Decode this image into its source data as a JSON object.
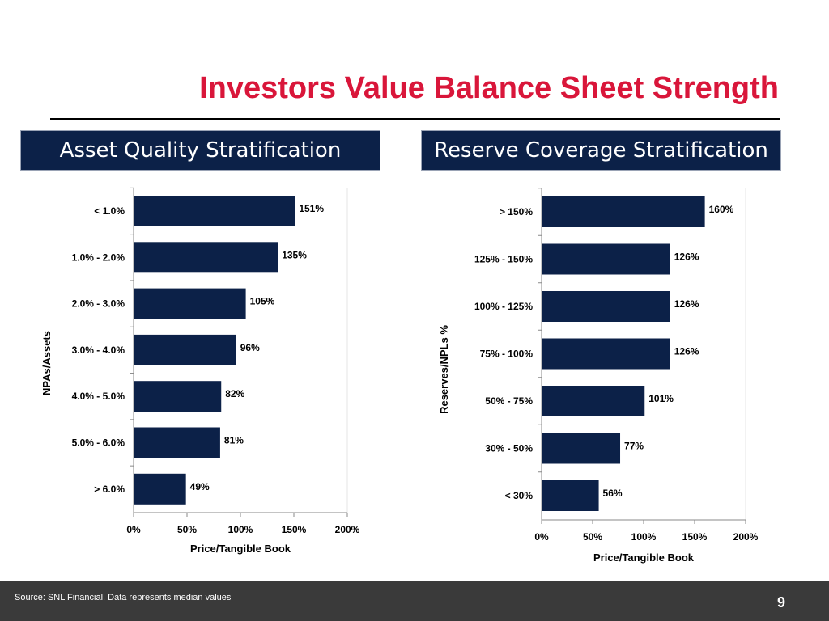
{
  "slide": {
    "title": "Investors Value Balance Sheet Strength",
    "page_number": "9",
    "source_note": "Source: SNL Financial. Data represents median values"
  },
  "colors": {
    "title": "#d9163a",
    "bar": "#0c2148",
    "header_bg": "#0c2148",
    "footer_bg": "#3a3a3a"
  },
  "panels": {
    "left_header": "Asset Quality Stratification",
    "right_header": "Reserve Coverage Stratification"
  },
  "chart_data": [
    {
      "type": "bar",
      "orientation": "horizontal",
      "categories": [
        "< 1.0%",
        "1.0% - 2.0%",
        "2.0% - 3.0%",
        "3.0% - 4.0%",
        "4.0% - 5.0%",
        "5.0% - 6.0%",
        "> 6.0%"
      ],
      "values": [
        151,
        135,
        105,
        96,
        82,
        81,
        49
      ],
      "value_labels": [
        "151%",
        "135%",
        "105%",
        "96%",
        "82%",
        "81%",
        "49%"
      ],
      "xlabel": "Price/Tangible Book",
      "ylabel": "NPAs/Assets",
      "xlim": [
        0,
        200
      ],
      "xticks": [
        "0%",
        "50%",
        "100%",
        "150%",
        "200%"
      ],
      "grid": false
    },
    {
      "type": "bar",
      "orientation": "horizontal",
      "categories": [
        "> 150%",
        "125% - 150%",
        "100% - 125%",
        "75% - 100%",
        "50% - 75%",
        "30% - 50%",
        "< 30%"
      ],
      "values": [
        160,
        126,
        126,
        126,
        101,
        77,
        56
      ],
      "value_labels": [
        "160%",
        "126%",
        "126%",
        "126%",
        "101%",
        "77%",
        "56%"
      ],
      "xlabel": "Price/Tangible Book",
      "ylabel": "Reserves/NPLs %",
      "xlim": [
        0,
        200
      ],
      "xticks": [
        "0%",
        "50%",
        "100%",
        "150%",
        "200%"
      ],
      "grid": false
    }
  ]
}
